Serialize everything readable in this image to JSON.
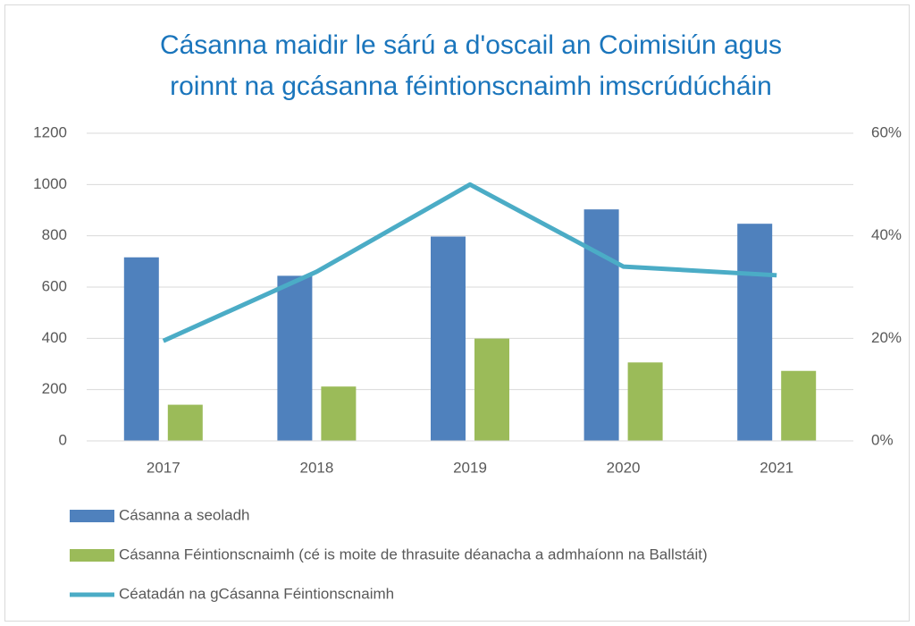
{
  "chart_data": {
    "type": "bar",
    "title": [
      "Cásanna maidir le sárú a d'oscail an Coimisiún agus",
      "roinnt na gcásanna féintionscnaimh imscrúdúcháin"
    ],
    "categories": [
      "2017",
      "2018",
      "2019",
      "2020",
      "2021"
    ],
    "series": [
      {
        "name": "Cásanna a seoladh",
        "color": "#4f81bd",
        "type": "bar",
        "values": [
          716,
          644,
          797,
          903,
          847
        ]
      },
      {
        "name": "Cásanna Féintionscnaimh (cé is moite de thrasuite déanacha a admhaíonn na Ballstáit)",
        "color": "#9bbb59",
        "type": "bar",
        "values": [
          141,
          212,
          399,
          306,
          273
        ]
      },
      {
        "name": "Céatadán na gCásanna Féintionscnaimh",
        "color": "#4bacc6",
        "type": "line",
        "axis": "y2",
        "values": [
          19.5,
          33,
          50,
          34,
          32.3
        ]
      }
    ],
    "ylim": [
      0,
      1200
    ],
    "yticks": [
      0,
      200,
      400,
      600,
      800,
      1000,
      1200
    ],
    "y2lim": [
      0,
      60
    ],
    "y2ticks": [
      {
        "value": 0,
        "label": "0%"
      },
      {
        "value": 20,
        "label": "20%"
      },
      {
        "value": 40,
        "label": "40%"
      },
      {
        "value": 60,
        "label": "60%"
      }
    ],
    "grid": true,
    "legend": "bottom"
  }
}
